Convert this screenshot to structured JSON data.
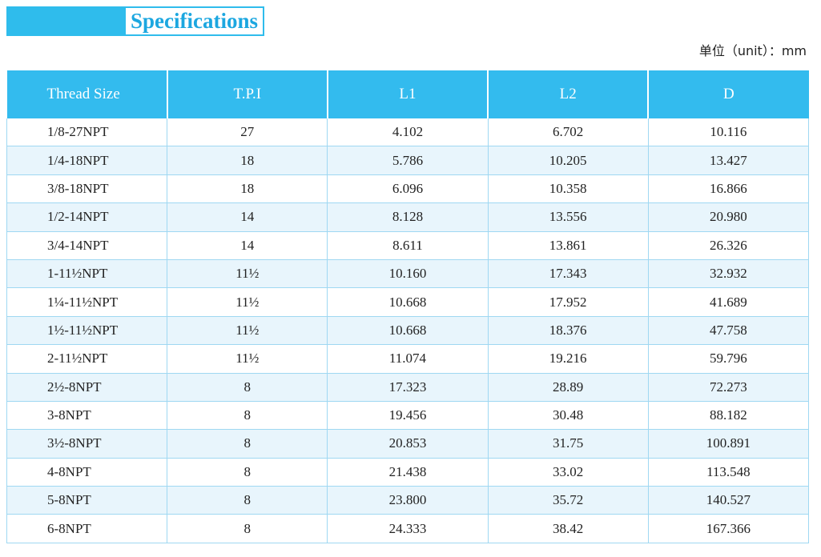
{
  "header": {
    "title": "Specifications",
    "unit": "单位（unit）：mm"
  },
  "table": {
    "columns": [
      "Thread Size",
      "T.P.I",
      "L1",
      "L2",
      "D"
    ],
    "rows": [
      [
        "1/8-27NPT",
        "27",
        "4.102",
        "6.702",
        "10.116"
      ],
      [
        "1/4-18NPT",
        "18",
        "5.786",
        "10.205",
        "13.427"
      ],
      [
        "3/8-18NPT",
        "18",
        "6.096",
        "10.358",
        "16.866"
      ],
      [
        "1/2-14NPT",
        "14",
        "8.128",
        "13.556",
        "20.980"
      ],
      [
        "3/4-14NPT",
        "14",
        "8.611",
        "13.861",
        "26.326"
      ],
      [
        "1-11½NPT",
        "11½",
        "10.160",
        "17.343",
        "32.932"
      ],
      [
        "1¼-11½NPT",
        "11½",
        "10.668",
        "17.952",
        "41.689"
      ],
      [
        "1½-11½NPT",
        "11½",
        "10.668",
        "18.376",
        "47.758"
      ],
      [
        "2-11½NPT",
        "11½",
        "11.074",
        "19.216",
        "59.796"
      ],
      [
        "2½-8NPT",
        "8",
        "17.323",
        "28.89",
        "72.273"
      ],
      [
        "3-8NPT",
        "8",
        "19.456",
        "30.48",
        "88.182"
      ],
      [
        "3½-8NPT",
        "8",
        "20.853",
        "31.75",
        "100.891"
      ],
      [
        "4-8NPT",
        "8",
        "21.438",
        "33.02",
        "113.548"
      ],
      [
        "5-8NPT",
        "8",
        "23.800",
        "35.72",
        "140.527"
      ],
      [
        "6-8NPT",
        "8",
        "24.333",
        "38.42",
        "167.366"
      ]
    ]
  }
}
